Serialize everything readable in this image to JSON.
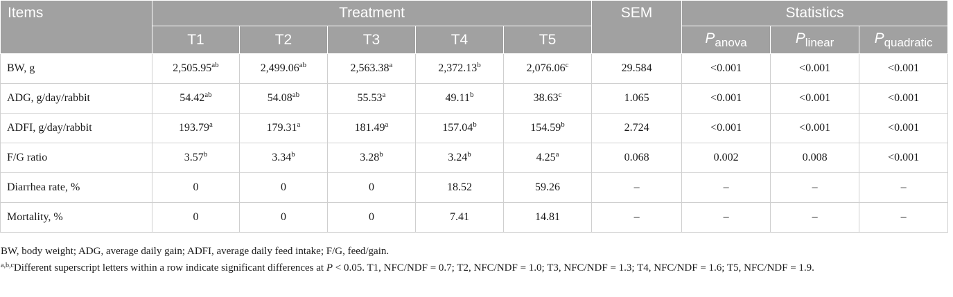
{
  "table": {
    "header": {
      "items": "Items",
      "treatment": "Treatment",
      "sem": "SEM",
      "statistics": "Statistics",
      "treatments": [
        "T1",
        "T2",
        "T3",
        "T4",
        "T5"
      ],
      "p_letter": "P",
      "p_subs": [
        "anova",
        "linear",
        "quadratic"
      ]
    },
    "rows": [
      {
        "label": "BW, g",
        "values": [
          {
            "v": "2,505.95",
            "sup": "ab"
          },
          {
            "v": "2,499.06",
            "sup": "ab"
          },
          {
            "v": "2,563.38",
            "sup": "a"
          },
          {
            "v": "2,372.13",
            "sup": "b"
          },
          {
            "v": "2,076.06",
            "sup": "c"
          }
        ],
        "sem": "29.584",
        "p": [
          "<0.001",
          "<0.001",
          "<0.001"
        ]
      },
      {
        "label": "ADG, g/day/rabbit",
        "values": [
          {
            "v": "54.42",
            "sup": "ab"
          },
          {
            "v": "54.08",
            "sup": "ab"
          },
          {
            "v": "55.53",
            "sup": "a"
          },
          {
            "v": "49.11",
            "sup": "b"
          },
          {
            "v": "38.63",
            "sup": "c"
          }
        ],
        "sem": "1.065",
        "p": [
          "<0.001",
          "<0.001",
          "<0.001"
        ]
      },
      {
        "label": "ADFI, g/day/rabbit",
        "values": [
          {
            "v": "193.79",
            "sup": "a"
          },
          {
            "v": "179.31",
            "sup": "a"
          },
          {
            "v": "181.49",
            "sup": "a"
          },
          {
            "v": "157.04",
            "sup": "b"
          },
          {
            "v": "154.59",
            "sup": "b"
          }
        ],
        "sem": "2.724",
        "p": [
          "<0.001",
          "<0.001",
          "<0.001"
        ]
      },
      {
        "label": "F/G ratio",
        "values": [
          {
            "v": "3.57",
            "sup": "b"
          },
          {
            "v": "3.34",
            "sup": "b"
          },
          {
            "v": "3.28",
            "sup": "b"
          },
          {
            "v": "3.24",
            "sup": "b"
          },
          {
            "v": "4.25",
            "sup": "a"
          }
        ],
        "sem": "0.068",
        "p": [
          "0.002",
          "0.008",
          "<0.001"
        ]
      },
      {
        "label": "Diarrhea rate, %",
        "values": [
          {
            "v": "0",
            "sup": ""
          },
          {
            "v": "0",
            "sup": ""
          },
          {
            "v": "0",
            "sup": ""
          },
          {
            "v": "18.52",
            "sup": ""
          },
          {
            "v": "59.26",
            "sup": ""
          }
        ],
        "sem": "–",
        "p": [
          "–",
          "–",
          "–"
        ]
      },
      {
        "label": "Mortality, %",
        "values": [
          {
            "v": "0",
            "sup": ""
          },
          {
            "v": "0",
            "sup": ""
          },
          {
            "v": "0",
            "sup": ""
          },
          {
            "v": "7.41",
            "sup": ""
          },
          {
            "v": "14.81",
            "sup": ""
          }
        ],
        "sem": "–",
        "p": [
          "–",
          "–",
          "–"
        ]
      }
    ]
  },
  "notes": {
    "abbreviations": "BW, body weight; ADG, average daily gain; ADFI, average daily feed intake; F/G, feed/gain.",
    "footnote_sup": "a,b,c",
    "footnote_part1": "Different superscript letters within a row indicate significant differences at ",
    "footnote_p": "P",
    "footnote_part2": " < 0.05. T1, NFC/NDF = 0.7; T2, NFC/NDF = 1.0; T3, NFC/NDF = 1.3; T4, NFC/NDF = 1.6; T5, NFC/NDF = 1.9."
  }
}
